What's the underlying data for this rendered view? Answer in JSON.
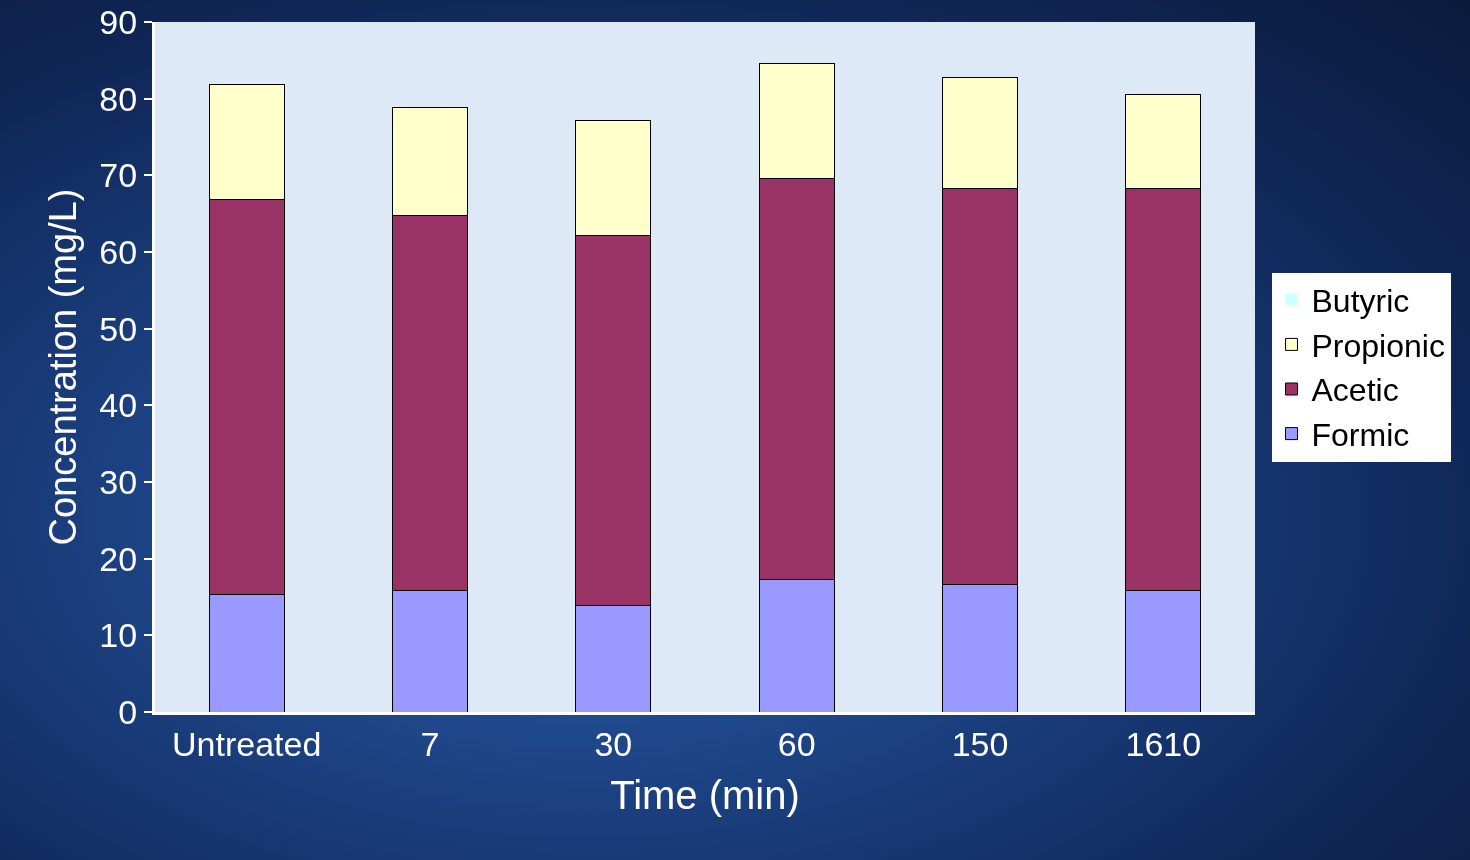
{
  "chart_data": {
    "type": "bar",
    "stacked": true,
    "xlabel": "Time (min)",
    "ylabel": "Concentration (mg/L)",
    "categories": [
      "Untreated",
      "7",
      "30",
      "60",
      "150",
      "1610"
    ],
    "series": [
      {
        "name": "Formic",
        "color": "#9999ff",
        "values": [
          15.3,
          15.8,
          13.9,
          17.3,
          16.6,
          15.8
        ]
      },
      {
        "name": "Acetic",
        "color": "#993366",
        "values": [
          51.5,
          49.0,
          48.2,
          52.3,
          51.7,
          52.5
        ]
      },
      {
        "name": "Propionic",
        "color": "#ffffcc",
        "values": [
          15.0,
          14.0,
          15.0,
          15.0,
          14.4,
          12.2
        ]
      },
      {
        "name": "Butyric",
        "color": "#ccffff",
        "values": [
          0,
          0,
          0,
          0,
          0,
          0
        ]
      }
    ],
    "ylim": [
      0,
      90
    ],
    "yticks": [
      0,
      10,
      20,
      30,
      40,
      50,
      60,
      70,
      80,
      90
    ],
    "grid": false,
    "legend": "right"
  }
}
